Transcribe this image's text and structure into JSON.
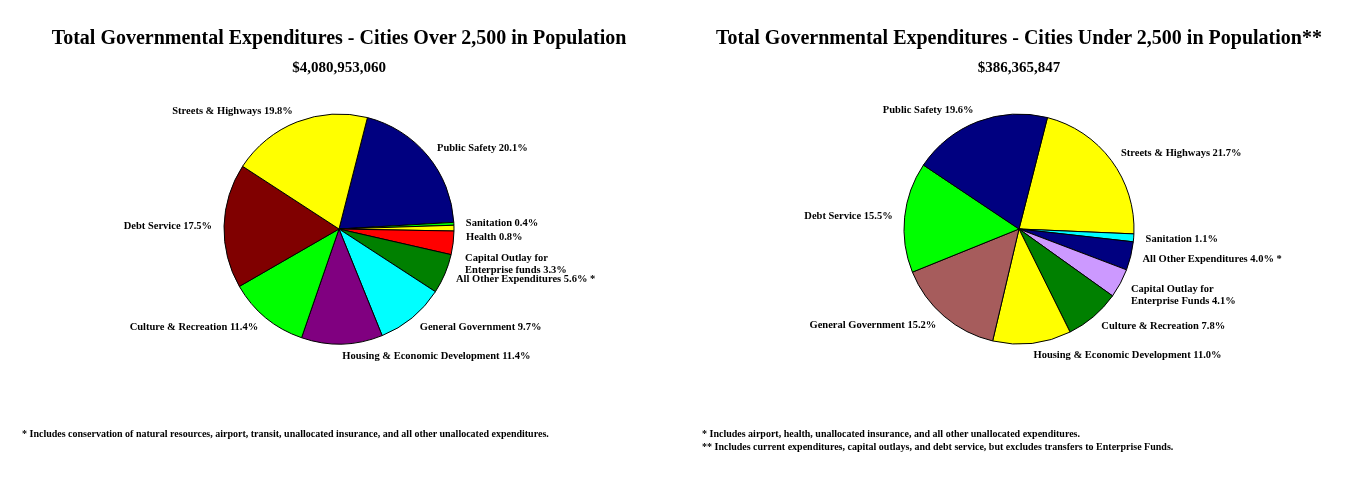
{
  "chart_data": [
    {
      "type": "pie",
      "title": "Total Governmental Expenditures - Cities Over 2,500 in Population",
      "subtitle": "$4,080,953,060",
      "legend": false,
      "categories": [
        "Public Safety",
        "Sanitation",
        "Health",
        "Capital Outlay for Enterprise funds",
        "All Other Expenditures",
        "General Government",
        "Housing & Economic Development",
        "Culture & Recreation",
        "Debt Service",
        "Streets & Highways"
      ],
      "values": [
        20.1,
        0.4,
        0.8,
        3.3,
        5.6,
        9.7,
        11.4,
        11.4,
        17.5,
        19.8
      ],
      "value_labels": [
        "20.1%",
        "0.4%",
        "0.8%",
        "3.3%",
        "5.6% *",
        "9.7%",
        "11.4%",
        "11.4%",
        "17.5%",
        "19.8%"
      ],
      "colors": [
        "#000080",
        "#00ff00",
        "#ffff00",
        "#ff0000",
        "#008000",
        "#00ffff",
        "#800080",
        "#00ff00",
        "#800000",
        "#ffff00"
      ],
      "annotations": [
        "* Includes conservation of natural resources, airport, transit, unallocated insurance, and all other unallocated expenditures."
      ]
    },
    {
      "type": "pie",
      "title": "Total Governmental Expenditures - Cities Under 2,500 in Population**",
      "subtitle": "$386,365,847",
      "legend": false,
      "categories": [
        "Streets & Highways",
        "Sanitation",
        "All Other Expenditures",
        "Capital Outlay for Enterprise Funds",
        "Culture & Recreation",
        "Housing & Economic Development",
        "General Government",
        "Debt Service",
        "Public Safety"
      ],
      "values": [
        21.7,
        1.1,
        4.0,
        4.1,
        7.8,
        11.0,
        15.2,
        15.5,
        19.6
      ],
      "value_labels": [
        "21.7%",
        "1.1%",
        "4.0% *",
        "4.1%",
        "7.8%",
        "11.0%",
        "15.2%",
        "15.5%",
        "19.6%"
      ],
      "colors": [
        "#ffff00",
        "#00ffff",
        "#000080",
        "#cc99ff",
        "#008000",
        "#ffff00",
        "#a65c5c",
        "#00ff00",
        "#000080"
      ],
      "annotations": [
        "* Includes airport, health, unallocated insurance, and all other unallocated expenditures.",
        "** Includes current expenditures, capital outlays, and debt service, but excludes transfers to Enterprise Funds."
      ]
    }
  ]
}
